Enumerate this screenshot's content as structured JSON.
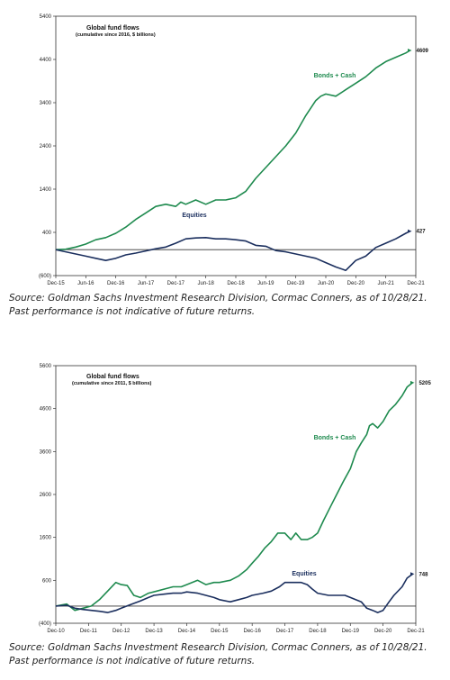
{
  "colors": {
    "bonds": "#1e8a4e",
    "equities": "#1b2f5e",
    "axis": "#333333"
  },
  "chart_data": [
    {
      "type": "line",
      "title": "Global fund flows",
      "subtitle": "(cumulative since 2016, $ billions)",
      "ylim": [
        -600,
        5400
      ],
      "yticks": [
        "5400",
        "4400",
        "3400",
        "2400",
        "1400",
        "400",
        "(600)"
      ],
      "ytick_values": [
        5400,
        4400,
        3400,
        2400,
        1400,
        400,
        -600
      ],
      "x_range": [
        2015.917,
        2021.917
      ],
      "xticks": [
        "Dec-15",
        "Jun-16",
        "Dec-16",
        "Jun-17",
        "Dec-17",
        "Jun-18",
        "Dec-18",
        "Jun-19",
        "Dec-19",
        "Jun-20",
        "Dec-20",
        "Jun-21",
        "Dec-21"
      ],
      "xtick_values": [
        2015.917,
        2016.417,
        2016.917,
        2017.417,
        2017.917,
        2018.417,
        2018.917,
        2019.417,
        2019.917,
        2020.417,
        2020.917,
        2021.417,
        2021.917
      ],
      "grid": false,
      "series": [
        {
          "name": "Bonds + Cash",
          "end_label": "4609",
          "x": [
            2015.917,
            2016.083,
            2016.25,
            2016.417,
            2016.583,
            2016.75,
            2016.917,
            2017.083,
            2017.25,
            2017.417,
            2017.583,
            2017.75,
            2017.917,
            2018.0,
            2018.083,
            2018.25,
            2018.417,
            2018.583,
            2018.75,
            2018.917,
            2019.083,
            2019.25,
            2019.417,
            2019.583,
            2019.75,
            2019.917,
            2020.083,
            2020.25,
            2020.333,
            2020.417,
            2020.583,
            2020.75,
            2020.917,
            2021.083,
            2021.25,
            2021.417,
            2021.583,
            2021.75,
            2021.82
          ],
          "y": [
            0,
            10,
            60,
            130,
            230,
            280,
            380,
            520,
            700,
            850,
            1000,
            1050,
            1000,
            1100,
            1050,
            1150,
            1050,
            1150,
            1150,
            1200,
            1350,
            1650,
            1900,
            2150,
            2400,
            2700,
            3100,
            3450,
            3550,
            3600,
            3550,
            3700,
            3850,
            4000,
            4200,
            4350,
            4450,
            4550,
            4609
          ]
        },
        {
          "name": "Equities",
          "end_label": "427",
          "x": [
            2015.917,
            2016.083,
            2016.25,
            2016.417,
            2016.583,
            2016.75,
            2016.917,
            2017.083,
            2017.25,
            2017.417,
            2017.583,
            2017.75,
            2017.917,
            2018.083,
            2018.25,
            2018.417,
            2018.583,
            2018.75,
            2018.917,
            2019.083,
            2019.25,
            2019.417,
            2019.583,
            2019.75,
            2019.917,
            2020.083,
            2020.25,
            2020.417,
            2020.583,
            2020.75,
            2020.917,
            2021.083,
            2021.25,
            2021.417,
            2021.583,
            2021.75,
            2021.82
          ],
          "y": [
            0,
            -50,
            -100,
            -150,
            -200,
            -250,
            -200,
            -120,
            -80,
            -30,
            20,
            60,
            150,
            250,
            270,
            280,
            250,
            250,
            230,
            200,
            100,
            80,
            -20,
            -50,
            -100,
            -150,
            -200,
            -300,
            -400,
            -480,
            -250,
            -150,
            50,
            150,
            250,
            380,
            427
          ]
        }
      ],
      "series_label_positions": [
        "mid",
        "mid"
      ]
    },
    {
      "type": "line",
      "title": "Global fund flows",
      "subtitle": "(cumulative since 2011, $ billions)",
      "ylim": [
        -400,
        5600
      ],
      "yticks": [
        "5600",
        "4600",
        "3600",
        "2600",
        "1600",
        "600",
        "(400)"
      ],
      "ytick_values": [
        5600,
        4600,
        3600,
        2600,
        1600,
        600,
        -400
      ],
      "x_range": [
        2010.917,
        2021.917
      ],
      "xticks": [
        "Dec-10",
        "Dec-11",
        "Dec-12",
        "Dec-13",
        "Dec-14",
        "Dec-15",
        "Dec-16",
        "Dec-17",
        "Dec-18",
        "Dec-19",
        "Dec-20",
        "Dec-21"
      ],
      "xtick_values": [
        2010.917,
        2011.917,
        2012.917,
        2013.917,
        2014.917,
        2015.917,
        2016.917,
        2017.917,
        2018.917,
        2019.917,
        2020.917,
        2021.917
      ],
      "grid": false,
      "series": [
        {
          "name": "Bonds + Cash",
          "end_label": "5205",
          "x": [
            2010.917,
            2011.25,
            2011.5,
            2011.75,
            2012.0,
            2012.25,
            2012.5,
            2012.75,
            2012.917,
            2013.1,
            2013.3,
            2013.5,
            2013.75,
            2014.0,
            2014.25,
            2014.5,
            2014.75,
            2014.917,
            2015.25,
            2015.5,
            2015.75,
            2015.917,
            2016.25,
            2016.5,
            2016.75,
            2016.917,
            2017.1,
            2017.3,
            2017.5,
            2017.7,
            2017.917,
            2018.1,
            2018.25,
            2018.417,
            2018.6,
            2018.75,
            2018.917,
            2019.1,
            2019.3,
            2019.5,
            2019.7,
            2019.917,
            2020.1,
            2020.25,
            2020.417,
            2020.5,
            2020.6,
            2020.75,
            2020.917,
            2021.1,
            2021.3,
            2021.5,
            2021.65,
            2021.82
          ],
          "y": [
            0,
            50,
            -100,
            -50,
            0,
            150,
            350,
            550,
            500,
            480,
            250,
            200,
            300,
            350,
            400,
            450,
            450,
            500,
            600,
            500,
            550,
            550,
            600,
            700,
            850,
            1000,
            1150,
            1350,
            1500,
            1700,
            1700,
            1550,
            1700,
            1550,
            1550,
            1600,
            1700,
            2000,
            2300,
            2600,
            2900,
            3200,
            3600,
            3800,
            4000,
            4200,
            4250,
            4150,
            4300,
            4550,
            4700,
            4900,
            5100,
            5205
          ]
        },
        {
          "name": "Equities",
          "end_label": "748",
          "x": [
            2010.917,
            2011.25,
            2011.5,
            2011.75,
            2012.0,
            2012.25,
            2012.5,
            2012.75,
            2012.917,
            2013.25,
            2013.5,
            2013.75,
            2013.917,
            2014.25,
            2014.5,
            2014.75,
            2014.917,
            2015.25,
            2015.5,
            2015.75,
            2015.917,
            2016.25,
            2016.5,
            2016.75,
            2016.917,
            2017.25,
            2017.5,
            2017.75,
            2017.917,
            2018.25,
            2018.417,
            2018.6,
            2018.75,
            2018.917,
            2019.25,
            2019.5,
            2019.75,
            2019.917,
            2020.25,
            2020.417,
            2020.6,
            2020.75,
            2020.917,
            2021.1,
            2021.25,
            2021.5,
            2021.65,
            2021.82
          ],
          "y": [
            0,
            20,
            -50,
            -80,
            -100,
            -120,
            -150,
            -100,
            -50,
            50,
            120,
            200,
            250,
            280,
            300,
            300,
            330,
            300,
            250,
            200,
            150,
            100,
            150,
            200,
            250,
            300,
            350,
            450,
            550,
            550,
            550,
            500,
            400,
            300,
            250,
            250,
            250,
            200,
            100,
            -50,
            -100,
            -150,
            -100,
            100,
            250,
            450,
            650,
            748
          ]
        }
      ],
      "series_label_positions": [
        "mid",
        "mid"
      ]
    }
  ],
  "captions": [
    "Source: Goldman Sachs Investment Research Division, Cormac Conners, as of 10/28/21. Past performance is not indicative of future returns.",
    "Source: Goldman Sachs Investment Research Division, Cormac Conners, as of 10/28/21. Past performance is not indicative of future returns."
  ]
}
